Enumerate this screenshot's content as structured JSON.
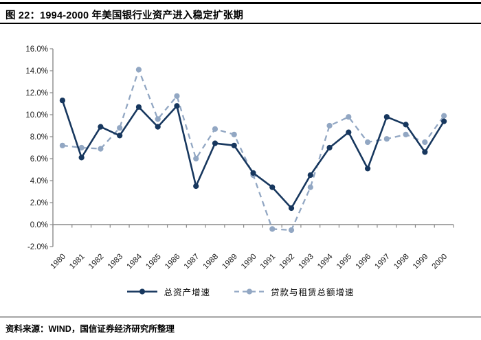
{
  "header": {
    "title": "图 22：1994-2000 年美国银行业资产进入稳定扩张期"
  },
  "chart_data": {
    "type": "line",
    "title": "",
    "categories": [
      "1980",
      "1981",
      "1982",
      "1983",
      "1984",
      "1985",
      "1986",
      "1987",
      "1988",
      "1989",
      "1990",
      "1991",
      "1992",
      "1993",
      "1994",
      "1995",
      "1996",
      "1997",
      "1998",
      "1999",
      "2000"
    ],
    "series": [
      {
        "name": "总资产增速",
        "color": "#17375E",
        "line_style": "solid",
        "marker": "circle",
        "values": [
          11.3,
          6.1,
          8.9,
          8.1,
          10.7,
          8.9,
          10.8,
          3.5,
          7.4,
          7.2,
          4.7,
          3.4,
          1.5,
          4.5,
          7.0,
          8.4,
          5.1,
          9.8,
          9.1,
          6.6,
          9.4
        ]
      },
      {
        "name": "贷款与租赁总额增速",
        "color": "#92A7C3",
        "line_style": "dashed",
        "marker": "circle",
        "values": [
          7.2,
          7.0,
          6.9,
          8.8,
          14.1,
          9.6,
          11.7,
          6.0,
          8.7,
          8.2,
          4.5,
          -0.4,
          -0.5,
          3.4,
          9.0,
          9.8,
          7.5,
          7.8,
          8.2,
          7.5,
          9.9
        ]
      }
    ],
    "xlabel": "",
    "ylabel": "",
    "ylim": [
      -2,
      16
    ],
    "ytick_step": 2,
    "ytick_labels": [
      "16.0%",
      "14.0%",
      "12.0%",
      "10.0%",
      "8.0%",
      "6.0%",
      "4.0%",
      "2.0%",
      "0.0%",
      "-2.0%"
    ],
    "grid": false,
    "legend_position": "bottom",
    "axis_color": "#8a8a8a",
    "tick_label_color": "#1a1a1a"
  },
  "footer": {
    "source": "资料来源：WIND，国信证券经济研究所整理"
  }
}
